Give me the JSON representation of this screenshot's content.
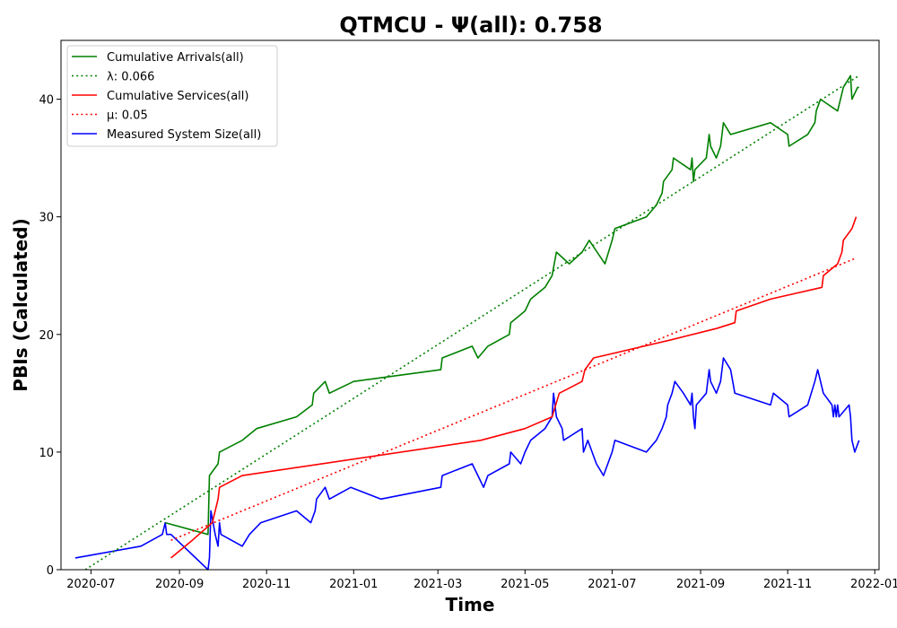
{
  "chart_data": {
    "type": "line",
    "title": "QTMCU -  Ψ(all): 0.758",
    "xlabel": "Time",
    "ylabel": "PBIs (Calculated)",
    "xlim": [
      "2020-06-10",
      "2022-01-04"
    ],
    "ylim": [
      0,
      45
    ],
    "x_ticks": [
      "2020-07",
      "2020-09",
      "2020-11",
      "2021-01",
      "2021-03",
      "2021-05",
      "2021-07",
      "2021-09",
      "2021-11",
      "2022-01"
    ],
    "y_ticks": [
      0,
      10,
      20,
      30,
      40
    ],
    "grid": false,
    "legend_position": "top-left",
    "series": [
      {
        "name": "Cumulative Arrivals(all)",
        "color": "#008000",
        "style": "solid",
        "points": [
          [
            "2020-08-22",
            4
          ],
          [
            "2020-09-21",
            3
          ],
          [
            "2020-09-22",
            8
          ],
          [
            "2020-09-28",
            9
          ],
          [
            "2020-09-29",
            10
          ],
          [
            "2020-10-15",
            11
          ],
          [
            "2020-10-25",
            12
          ],
          [
            "2020-11-22",
            13
          ],
          [
            "2020-12-03",
            14
          ],
          [
            "2020-12-04",
            15
          ],
          [
            "2020-12-12",
            16
          ],
          [
            "2020-12-15",
            15
          ],
          [
            "2021-01-01",
            16
          ],
          [
            "2021-03-03",
            17
          ],
          [
            "2021-03-04",
            18
          ],
          [
            "2021-03-25",
            19
          ],
          [
            "2021-03-29",
            18
          ],
          [
            "2021-04-05",
            19
          ],
          [
            "2021-04-20",
            20
          ],
          [
            "2021-04-21",
            21
          ],
          [
            "2021-05-01",
            22
          ],
          [
            "2021-05-05",
            23
          ],
          [
            "2021-05-15",
            24
          ],
          [
            "2021-05-20",
            25
          ],
          [
            "2021-05-23",
            27
          ],
          [
            "2021-06-01",
            26
          ],
          [
            "2021-06-10",
            27
          ],
          [
            "2021-06-15",
            28
          ],
          [
            "2021-06-26",
            26
          ],
          [
            "2021-07-01",
            28
          ],
          [
            "2021-07-03",
            29
          ],
          [
            "2021-07-25",
            30
          ],
          [
            "2021-08-01",
            31
          ],
          [
            "2021-08-05",
            32
          ],
          [
            "2021-08-06",
            33
          ],
          [
            "2021-08-12",
            34
          ],
          [
            "2021-08-13",
            35
          ],
          [
            "2021-08-25",
            34
          ],
          [
            "2021-08-26",
            35
          ],
          [
            "2021-08-27",
            33
          ],
          [
            "2021-08-28",
            34
          ],
          [
            "2021-09-05",
            35
          ],
          [
            "2021-09-07",
            37
          ],
          [
            "2021-09-08",
            36
          ],
          [
            "2021-09-12",
            35
          ],
          [
            "2021-09-15",
            36
          ],
          [
            "2021-09-17",
            38
          ],
          [
            "2021-09-22",
            37
          ],
          [
            "2021-10-20",
            38
          ],
          [
            "2021-11-01",
            37
          ],
          [
            "2021-11-02",
            36
          ],
          [
            "2021-11-15",
            37
          ],
          [
            "2021-11-20",
            38
          ],
          [
            "2021-11-21",
            39
          ],
          [
            "2021-11-24",
            40
          ],
          [
            "2021-12-06",
            39
          ],
          [
            "2021-12-10",
            41
          ],
          [
            "2021-12-15",
            42
          ],
          [
            "2021-12-16",
            40
          ],
          [
            "2021-12-20",
            41
          ],
          [
            "2021-12-21",
            41
          ]
        ]
      },
      {
        "name": "λ: 0.066",
        "color": "#008000",
        "style": "dotted",
        "points": [
          [
            "2020-06-27",
            0
          ],
          [
            "2021-12-21",
            42
          ]
        ]
      },
      {
        "name": "Cumulative Services(all)",
        "color": "#ff0000",
        "style": "solid",
        "points": [
          [
            "2020-08-26",
            1
          ],
          [
            "2020-09-10",
            2.5
          ],
          [
            "2020-09-24",
            4
          ],
          [
            "2020-09-26",
            5
          ],
          [
            "2020-09-28",
            6
          ],
          [
            "2020-09-29",
            7
          ],
          [
            "2020-10-15",
            8
          ],
          [
            "2021-03-31",
            11
          ],
          [
            "2021-05-01",
            12
          ],
          [
            "2021-05-20",
            13
          ],
          [
            "2021-05-25",
            15
          ],
          [
            "2021-06-10",
            16
          ],
          [
            "2021-06-12",
            17
          ],
          [
            "2021-06-18",
            18
          ],
          [
            "2021-08-10",
            19.5
          ],
          [
            "2021-09-12",
            20.5
          ],
          [
            "2021-09-25",
            21
          ],
          [
            "2021-09-26",
            22
          ],
          [
            "2021-10-20",
            23
          ],
          [
            "2021-11-25",
            24
          ],
          [
            "2021-11-26",
            25
          ],
          [
            "2021-12-06",
            26
          ],
          [
            "2021-12-09",
            27
          ],
          [
            "2021-12-10",
            28
          ],
          [
            "2021-12-16",
            29
          ],
          [
            "2021-12-19",
            30
          ]
        ]
      },
      {
        "name": "μ: 0.05",
        "color": "#ff0000",
        "style": "dotted",
        "points": [
          [
            "2020-08-26",
            2.5
          ],
          [
            "2021-12-19",
            26.5
          ]
        ]
      },
      {
        "name": "Measured System Size(all)",
        "color": "#0000ff",
        "style": "solid",
        "points": [
          [
            "2020-06-20",
            1
          ],
          [
            "2020-08-05",
            2
          ],
          [
            "2020-08-20",
            3
          ],
          [
            "2020-08-22",
            4
          ],
          [
            "2020-08-23",
            3
          ],
          [
            "2020-08-26",
            3
          ],
          [
            "2020-09-21",
            0
          ],
          [
            "2020-09-22",
            1
          ],
          [
            "2020-09-23",
            5
          ],
          [
            "2020-09-26",
            3
          ],
          [
            "2020-09-28",
            2
          ],
          [
            "2020-09-29",
            4
          ],
          [
            "2020-09-30",
            3
          ],
          [
            "2020-10-15",
            2
          ],
          [
            "2020-10-20",
            3
          ],
          [
            "2020-10-28",
            4
          ],
          [
            "2020-11-22",
            5
          ],
          [
            "2020-12-02",
            4
          ],
          [
            "2020-12-05",
            5
          ],
          [
            "2020-12-06",
            6
          ],
          [
            "2020-12-12",
            7
          ],
          [
            "2020-12-15",
            6
          ],
          [
            "2020-12-30",
            7
          ],
          [
            "2021-01-20",
            6
          ],
          [
            "2021-03-03",
            7
          ],
          [
            "2021-03-04",
            8
          ],
          [
            "2021-03-25",
            9
          ],
          [
            "2021-03-29",
            8
          ],
          [
            "2021-04-02",
            7
          ],
          [
            "2021-04-05",
            8
          ],
          [
            "2021-04-20",
            9
          ],
          [
            "2021-04-21",
            10
          ],
          [
            "2021-04-28",
            9
          ],
          [
            "2021-05-01",
            10
          ],
          [
            "2021-05-05",
            11
          ],
          [
            "2021-05-15",
            12
          ],
          [
            "2021-05-20",
            13
          ],
          [
            "2021-05-21",
            15
          ],
          [
            "2021-05-23",
            13
          ],
          [
            "2021-05-27",
            12
          ],
          [
            "2021-05-28",
            11
          ],
          [
            "2021-06-10",
            12
          ],
          [
            "2021-06-11",
            10
          ],
          [
            "2021-06-14",
            11
          ],
          [
            "2021-06-17",
            10
          ],
          [
            "2021-06-20",
            9
          ],
          [
            "2021-06-25",
            8
          ],
          [
            "2021-07-01",
            10
          ],
          [
            "2021-07-03",
            11
          ],
          [
            "2021-07-25",
            10
          ],
          [
            "2021-08-01",
            11
          ],
          [
            "2021-08-05",
            12
          ],
          [
            "2021-08-08",
            13
          ],
          [
            "2021-08-09",
            14
          ],
          [
            "2021-08-12",
            15
          ],
          [
            "2021-08-14",
            16
          ],
          [
            "2021-08-20",
            15
          ],
          [
            "2021-08-25",
            14
          ],
          [
            "2021-08-26",
            15
          ],
          [
            "2021-08-27",
            13
          ],
          [
            "2021-08-28",
            12
          ],
          [
            "2021-08-29",
            14
          ],
          [
            "2021-09-05",
            15
          ],
          [
            "2021-09-07",
            17
          ],
          [
            "2021-09-08",
            16
          ],
          [
            "2021-09-12",
            15
          ],
          [
            "2021-09-15",
            16
          ],
          [
            "2021-09-17",
            18
          ],
          [
            "2021-09-22",
            17
          ],
          [
            "2021-09-25",
            15
          ],
          [
            "2021-10-20",
            14
          ],
          [
            "2021-10-22",
            15
          ],
          [
            "2021-11-01",
            14
          ],
          [
            "2021-11-02",
            13
          ],
          [
            "2021-11-15",
            14
          ],
          [
            "2021-11-20",
            16
          ],
          [
            "2021-11-22",
            17
          ],
          [
            "2021-11-26",
            15
          ],
          [
            "2021-12-02",
            14
          ],
          [
            "2021-12-03",
            13
          ],
          [
            "2021-12-04",
            14
          ],
          [
            "2021-12-05",
            13
          ],
          [
            "2021-12-06",
            14
          ],
          [
            "2021-12-07",
            13
          ],
          [
            "2021-12-14",
            14
          ],
          [
            "2021-12-15",
            13
          ],
          [
            "2021-12-16",
            11
          ],
          [
            "2021-12-18",
            10
          ],
          [
            "2021-12-21",
            11
          ]
        ]
      }
    ]
  }
}
